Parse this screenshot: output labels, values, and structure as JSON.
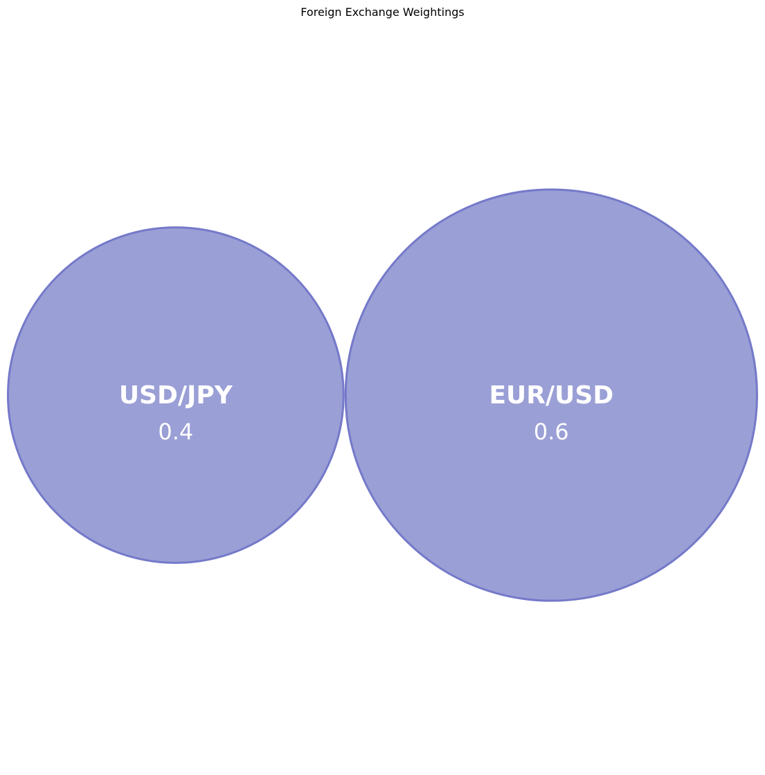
{
  "chart_data": {
    "type": "bubble",
    "title": "Foreign Exchange Weightings",
    "items": [
      {
        "name": "USD/JPY",
        "value": 0.4
      },
      {
        "name": "EUR/USD",
        "value": 0.6
      }
    ],
    "colors": {
      "bubble_fill": "#9a9fd6",
      "bubble_stroke": "#7479c9",
      "label": "#ffffff"
    }
  }
}
